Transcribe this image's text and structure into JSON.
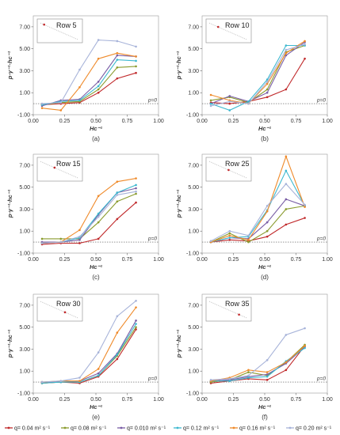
{
  "shared": {
    "ylabel": "p·γ⁻¹·hc⁻¹",
    "xlabel": "Hc⁻¹",
    "xlim": [
      0,
      1
    ],
    "ylim": [
      -1,
      8
    ],
    "xticks": [
      "0.00",
      "0.25",
      "0.50",
      "0.75",
      "1.00"
    ],
    "yticks": [
      "-1.00",
      "1.00",
      "3.00",
      "5.00",
      "7.00"
    ],
    "zero_line_label": "p=0"
  },
  "legend": [
    {
      "label": "q= 0.04 m² s⁻¹",
      "color": "#c0282a"
    },
    {
      "label": "q= 0.08 m² s⁻¹",
      "color": "#8a9b2e"
    },
    {
      "label": "q= 0.010 m² s⁻¹",
      "color": "#7a5ea6"
    },
    {
      "label": "q= 0.12 m² s⁻¹",
      "color": "#3cb8cf"
    },
    {
      "label": "q= 0.16 m² s⁻¹",
      "color": "#ef8a2a"
    },
    {
      "label": "q= 0.20 m² s⁻¹",
      "color": "#a7b3d9"
    }
  ],
  "chart_data": [
    {
      "type": "line",
      "panel": "(a)",
      "title": "Row 5",
      "x": [
        0.07,
        0.22,
        0.37,
        0.52,
        0.67,
        0.82
      ],
      "series": [
        {
          "name": "q= 0.04 m² s⁻¹",
          "values": [
            -0.1,
            0.0,
            0.1,
            1.0,
            2.3,
            2.8
          ]
        },
        {
          "name": "q= 0.08 m² s⁻¹",
          "values": [
            -0.1,
            0.1,
            0.2,
            1.3,
            3.3,
            3.4
          ]
        },
        {
          "name": "q= 0.010 m² s⁻¹",
          "values": [
            -0.2,
            0.3,
            0.4,
            2.0,
            4.4,
            4.3
          ]
        },
        {
          "name": "q= 0.12 m² s⁻¹",
          "values": [
            -0.1,
            0.2,
            0.3,
            1.6,
            4.0,
            3.9
          ]
        },
        {
          "name": "q= 0.16 m² s⁻¹",
          "values": [
            -0.4,
            -0.6,
            1.5,
            4.1,
            4.6,
            4.3
          ]
        },
        {
          "name": "q= 0.20 m² s⁻¹",
          "values": [
            0.0,
            0.1,
            3.1,
            5.8,
            5.7,
            5.2
          ]
        }
      ]
    },
    {
      "type": "line",
      "panel": "(b)",
      "title": "Row 10",
      "x": [
        0.07,
        0.22,
        0.37,
        0.52,
        0.67,
        0.82
      ],
      "series": [
        {
          "name": "q= 0.04 m² s⁻¹",
          "values": [
            0.1,
            0.0,
            0.2,
            0.6,
            1.3,
            4.1
          ]
        },
        {
          "name": "q= 0.08 m² s⁻¹",
          "values": [
            0.3,
            0.6,
            0.1,
            1.3,
            4.7,
            5.3
          ]
        },
        {
          "name": "q= 0.010 m² s⁻¹",
          "values": [
            0.0,
            0.7,
            0.2,
            1.0,
            4.4,
            5.6
          ]
        },
        {
          "name": "q= 0.12 m² s⁻¹",
          "values": [
            0.0,
            -0.6,
            0.2,
            2.2,
            5.3,
            5.3
          ]
        },
        {
          "name": "q= 0.16 m² s⁻¹",
          "values": [
            0.8,
            0.3,
            0.0,
            1.8,
            4.6,
            5.7
          ]
        },
        {
          "name": "q= 0.20 m² s⁻¹",
          "values": [
            -0.2,
            0.2,
            0.0,
            2.0,
            4.9,
            5.4
          ]
        }
      ]
    },
    {
      "type": "line",
      "panel": "(c)",
      "title": "Row 15",
      "x": [
        0.07,
        0.22,
        0.37,
        0.52,
        0.67,
        0.82
      ],
      "series": [
        {
          "name": "q= 0.04 m² s⁻¹",
          "values": [
            -0.2,
            -0.1,
            -0.1,
            0.3,
            2.1,
            3.6
          ]
        },
        {
          "name": "q= 0.08 m² s⁻¹",
          "values": [
            0.3,
            0.3,
            0.3,
            1.8,
            3.7,
            4.4
          ]
        },
        {
          "name": "q= 0.010 m² s⁻¹",
          "values": [
            0.0,
            0.0,
            0.2,
            2.5,
            4.5,
            4.9
          ]
        },
        {
          "name": "q= 0.12 m² s⁻¹",
          "values": [
            -0.1,
            0.0,
            0.4,
            2.6,
            4.5,
            5.2
          ]
        },
        {
          "name": "q= 0.16 m² s⁻¹",
          "values": [
            -0.1,
            0.0,
            1.1,
            4.2,
            5.5,
            5.8
          ]
        },
        {
          "name": "q= 0.20 m² s⁻¹",
          "values": [
            -0.1,
            0.0,
            0.5,
            2.3,
            4.3,
            4.6
          ]
        }
      ]
    },
    {
      "type": "line",
      "panel": "(d)",
      "title": "Row 25",
      "x": [
        0.07,
        0.22,
        0.37,
        0.52,
        0.67,
        0.82
      ],
      "series": [
        {
          "name": "q= 0.04 m² s⁻¹",
          "values": [
            0.0,
            0.2,
            0.1,
            0.5,
            1.6,
            2.2
          ]
        },
        {
          "name": "q= 0.08 m² s⁻¹",
          "values": [
            0.0,
            0.8,
            0.0,
            1.0,
            3.0,
            3.3
          ]
        },
        {
          "name": "q= 0.010 m² s⁻¹",
          "values": [
            0.0,
            0.4,
            0.3,
            1.8,
            3.9,
            3.3
          ]
        },
        {
          "name": "q= 0.12 m² s⁻¹",
          "values": [
            0.0,
            0.4,
            0.5,
            2.9,
            6.5,
            3.3
          ]
        },
        {
          "name": "q= 0.16 m² s⁻¹",
          "values": [
            0.0,
            0.6,
            0.2,
            2.8,
            7.8,
            3.2
          ]
        },
        {
          "name": "q= 0.20 m² s⁻¹",
          "values": [
            0.1,
            1.0,
            0.6,
            3.3,
            5.3,
            3.4
          ]
        }
      ]
    },
    {
      "type": "line",
      "panel": "(e)",
      "title": "Row 30",
      "x": [
        0.07,
        0.22,
        0.37,
        0.52,
        0.67,
        0.82
      ],
      "series": [
        {
          "name": "q= 0.04 m² s⁻¹",
          "values": [
            -0.1,
            0.0,
            -0.1,
            0.5,
            2.1,
            4.8
          ]
        },
        {
          "name": "q= 0.08 m² s⁻¹",
          "values": [
            -0.1,
            0.0,
            0.0,
            0.6,
            2.4,
            5.0
          ]
        },
        {
          "name": "q= 0.010 m² s⁻¹",
          "values": [
            0.0,
            0.0,
            0.1,
            0.8,
            2.6,
            5.6
          ]
        },
        {
          "name": "q= 0.12 m² s⁻¹",
          "values": [
            -0.1,
            0.0,
            0.0,
            0.6,
            2.5,
            5.3
          ]
        },
        {
          "name": "q= 0.16 m² s⁻¹",
          "values": [
            0.0,
            0.1,
            0.1,
            1.2,
            4.5,
            6.8
          ]
        },
        {
          "name": "q= 0.20 m² s⁻¹",
          "values": [
            0.0,
            0.1,
            0.4,
            2.7,
            6.0,
            7.4
          ]
        }
      ]
    },
    {
      "type": "line",
      "panel": "(f)",
      "title": "Row 35",
      "x": [
        0.07,
        0.22,
        0.37,
        0.52,
        0.67,
        0.82
      ],
      "series": [
        {
          "name": "q= 0.04 m² s⁻¹",
          "values": [
            -0.1,
            0.1,
            0.3,
            0.2,
            1.1,
            3.3
          ]
        },
        {
          "name": "q= 0.08 m² s⁻¹",
          "values": [
            0.0,
            0.2,
            0.9,
            0.6,
            1.8,
            3.4
          ]
        },
        {
          "name": "q= 0.010 m² s⁻¹",
          "values": [
            0.1,
            0.2,
            0.5,
            0.7,
            1.7,
            3.2
          ]
        },
        {
          "name": "q= 0.12 m² s⁻¹",
          "values": [
            0.1,
            0.1,
            0.4,
            0.5,
            1.9,
            3.1
          ]
        },
        {
          "name": "q= 0.16 m² s⁻¹",
          "values": [
            0.1,
            0.4,
            1.1,
            0.9,
            1.8,
            3.3
          ]
        },
        {
          "name": "q= 0.20 m² s⁻¹",
          "values": [
            0.2,
            0.3,
            0.6,
            2.0,
            4.3,
            4.9
          ]
        }
      ]
    }
  ]
}
